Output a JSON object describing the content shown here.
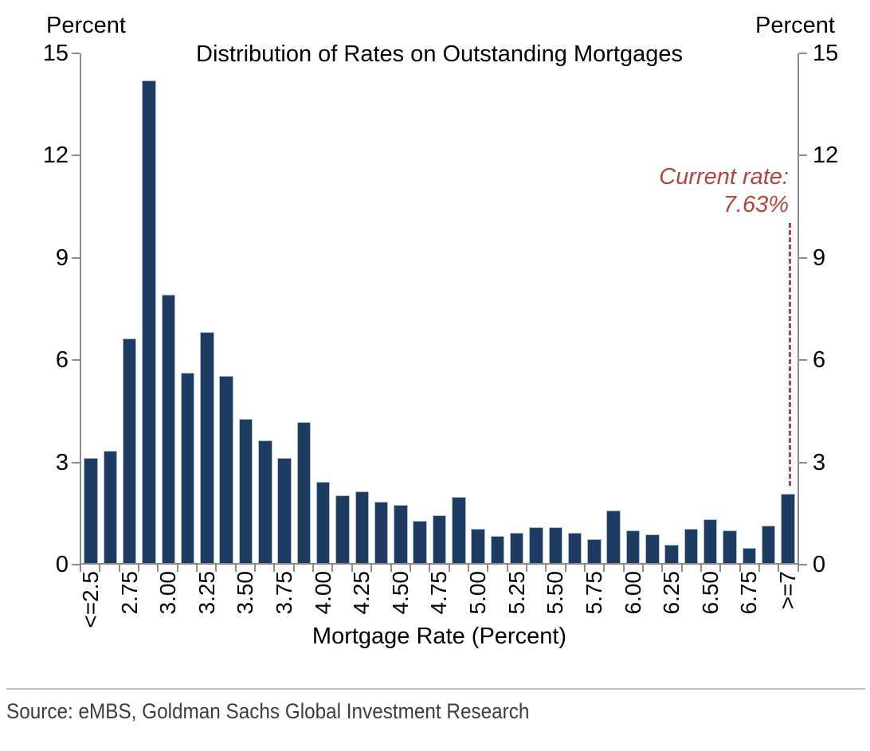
{
  "title": "Distribution of Rates on Outstanding Mortgages",
  "left_axis_unit": "Percent",
  "right_axis_unit": "Percent",
  "x_axis_title": "Mortgage Rate (Percent)",
  "annotation": {
    "line1": "Current rate:",
    "line2": "7.63%",
    "color": "#b2453d"
  },
  "source": "Source: eMBS, Goldman Sachs Global Investment Research",
  "colors": {
    "bar": "#1e3c61",
    "bar_edge": "#a9bfd6",
    "axis": "#8c8c8c",
    "annotation_red": "#b2453d"
  },
  "chart_data": {
    "type": "bar",
    "title": "Distribution of Rates on Outstanding Mortgages",
    "xlabel": "Mortgage Rate (Percent)",
    "ylabel": "Percent",
    "ylim": [
      0,
      15
    ],
    "y_ticks": [
      0,
      3,
      6,
      9,
      12,
      15
    ],
    "grid": false,
    "legend": "none",
    "n_bars": 37,
    "x_tick_labels": [
      "<=2.5",
      "2.75",
      "3.00",
      "3.25",
      "3.50",
      "3.75",
      "4.00",
      "4.25",
      "4.50",
      "4.75",
      "5.00",
      "5.25",
      "5.50",
      "5.75",
      "6.00",
      "6.25",
      "6.50",
      "6.75",
      ">=7"
    ],
    "x_tick_label_placement": "every other bar starting with the first",
    "values": [
      3.1,
      3.3,
      6.6,
      14.2,
      7.9,
      5.6,
      6.8,
      5.5,
      4.25,
      3.6,
      3.1,
      4.15,
      2.4,
      2.0,
      2.1,
      1.8,
      1.7,
      1.25,
      1.4,
      1.95,
      1.0,
      0.8,
      0.9,
      1.05,
      1.05,
      0.9,
      0.7,
      1.55,
      0.95,
      0.85,
      0.55,
      1.0,
      1.3,
      0.95,
      0.45,
      1.1,
      2.05
    ],
    "annotation": {
      "text": "Current rate: 7.63%",
      "x_position": ">=7 bin",
      "style": "red italic text with red dashed vertical line above the >=7 bar"
    }
  }
}
